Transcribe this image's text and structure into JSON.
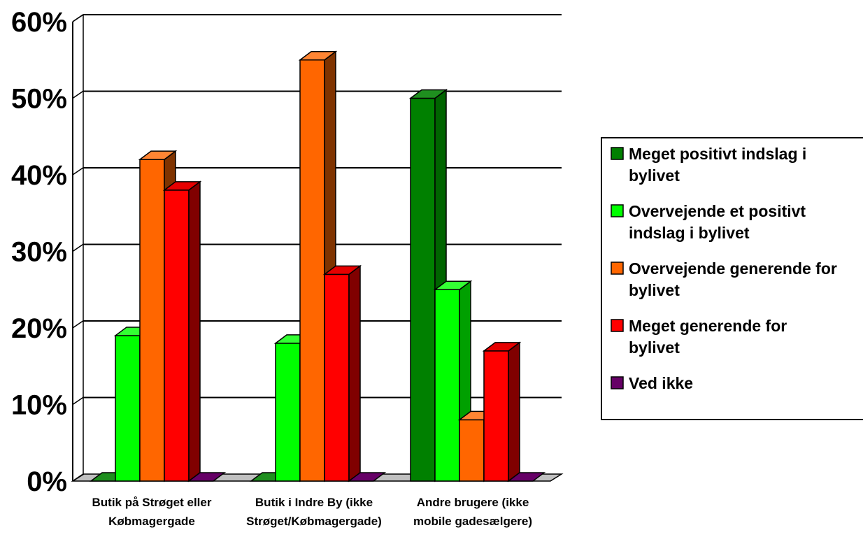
{
  "chart_data": {
    "type": "bar",
    "categories": [
      [
        "Butik på Strøget eller",
        "Købmagergade"
      ],
      [
        "Butik i Indre By (ikke",
        "Strøget/Købmagergade)"
      ],
      [
        "Andre brugere (ikke",
        "mobile gadesælgere)"
      ]
    ],
    "series": [
      {
        "name": [
          "Meget positivt indslag i",
          "bylivet"
        ],
        "values": [
          0,
          0,
          50
        ],
        "color": "#008000",
        "side_color": "#006400",
        "top_color": "#1f8f1f"
      },
      {
        "name": [
          "Overvejende et positivt",
          "indslag i bylivet"
        ],
        "values": [
          19,
          18,
          25
        ],
        "color": "#00ff00",
        "side_color": "#00a000",
        "top_color": "#33ff33"
      },
      {
        "name": [
          "Overvejende generende for",
          "bylivet"
        ],
        "values": [
          42,
          55,
          8
        ],
        "color": "#ff6600",
        "side_color": "#7f3300",
        "top_color": "#ff8533"
      },
      {
        "name": [
          "Meget generende for",
          "bylivet"
        ],
        "values": [
          38,
          27,
          17
        ],
        "color": "#ff0000",
        "side_color": "#800000",
        "top_color": "#e60000"
      },
      {
        "name": [
          "Ved ikke"
        ],
        "values": [
          0,
          0,
          0
        ],
        "color": "#660066",
        "side_color": "#330033",
        "top_color": "#660066"
      }
    ],
    "y_ticks": [
      "0%",
      "10%",
      "20%",
      "30%",
      "40%",
      "50%",
      "60%"
    ],
    "ylim": [
      0,
      60
    ],
    "grid": true,
    "legend_position": "right"
  }
}
